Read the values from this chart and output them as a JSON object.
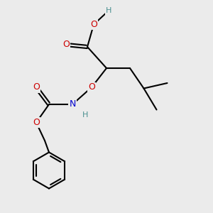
{
  "bg_color": "#ebebeb",
  "atom_colors": {
    "O": "#cc0000",
    "N": "#0000cc",
    "C": "#000000",
    "H": "#4a9090"
  },
  "bond_color": "#000000",
  "bond_width": 1.5,
  "font_size": 9
}
